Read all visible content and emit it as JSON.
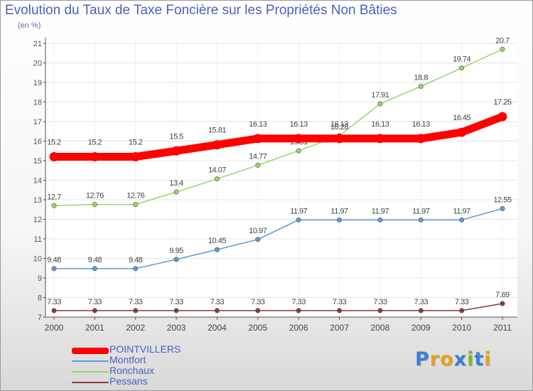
{
  "chart_data": {
    "type": "line",
    "title": "Evolution du Taux de Taxe Foncière sur les Propriétés Non Bâties",
    "unit_label": "(en %)",
    "x": [
      "2000",
      "2001",
      "2002",
      "2003",
      "2004",
      "2005",
      "2006",
      "2007",
      "2008",
      "2009",
      "2010",
      "2011"
    ],
    "ylim": [
      7,
      21
    ],
    "yticks": [
      "7",
      "8",
      "9",
      "10",
      "11",
      "12",
      "13",
      "14",
      "15",
      "16",
      "17",
      "18",
      "19",
      "20",
      "21"
    ],
    "grid": true,
    "series": [
      {
        "name": "POINTVILLERS",
        "color": "#ff0000",
        "values": [
          15.2,
          15.2,
          15.2,
          15.5,
          15.81,
          16.13,
          16.13,
          16.13,
          16.13,
          16.13,
          16.45,
          17.25
        ],
        "labels": [
          "15.2",
          "15.2",
          "15.2",
          "15.5",
          "15.81",
          "16.13",
          "16.13",
          "16.13",
          "16.13",
          "16.13",
          "16.45",
          "17.25"
        ]
      },
      {
        "name": "Montfort",
        "color": "#5b9bd5",
        "values": [
          9.48,
          9.48,
          9.48,
          9.95,
          10.45,
          10.97,
          11.97,
          11.97,
          11.97,
          11.97,
          11.97,
          12.55
        ],
        "labels": [
          "9.48",
          "9.48",
          "9.48",
          "9.95",
          "10.45",
          "10.97",
          "11.97",
          "11.97",
          "11.97",
          "11.97",
          "11.97",
          "12.55"
        ]
      },
      {
        "name": "Ronchaux",
        "color": "#99d566",
        "values": [
          12.7,
          12.76,
          12.76,
          13.4,
          14.07,
          14.77,
          15.51,
          16.28,
          17.91,
          18.8,
          19.74,
          20.7
        ],
        "labels": [
          "12.7",
          "12.76",
          "12.76",
          "13.4",
          "14.07",
          "14.77",
          "15.51",
          "16.28",
          "17.91",
          "18.8",
          "19.74",
          "20.7"
        ]
      },
      {
        "name": "Pessans",
        "color": "#8b3a3a",
        "values": [
          7.33,
          7.33,
          7.33,
          7.33,
          7.33,
          7.33,
          7.33,
          7.33,
          7.33,
          7.33,
          7.33,
          7.69
        ],
        "labels": [
          "7.33",
          "7.33",
          "7.33",
          "7.33",
          "7.33",
          "7.33",
          "7.33",
          "7.33",
          "7.33",
          "7.33",
          "7.33",
          "7.69"
        ]
      }
    ]
  },
  "logo": {
    "text": "Proxiti",
    "colors": [
      "#3a7fd5",
      "#e8a020",
      "#e8a020",
      "#3a7fd5",
      "#7ab82a",
      "#3a7fd5",
      "#e8a020"
    ]
  }
}
